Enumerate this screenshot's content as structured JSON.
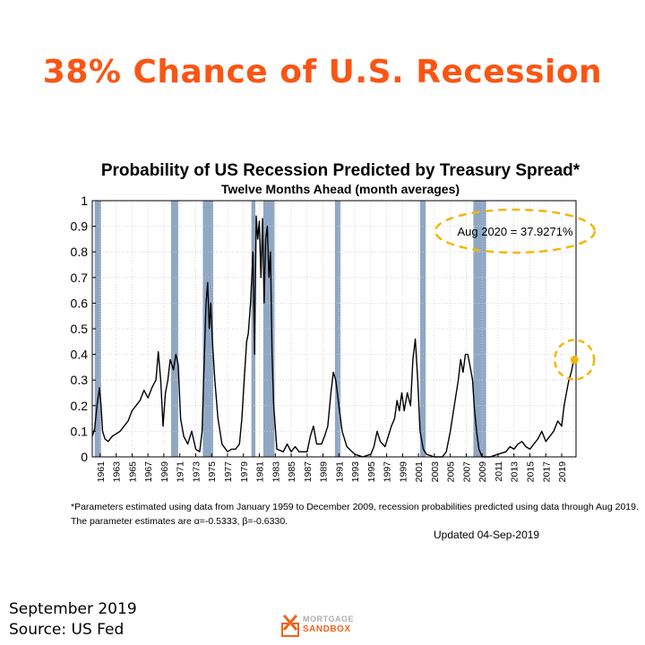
{
  "headline": "38% Chance of U.S. Recession",
  "colors": {
    "headline": "#fa5514",
    "recession_band": "#8fa7c4",
    "line": "#000000",
    "highlight": "#f2b705",
    "logo_orange": "#f0641e"
  },
  "footnote": {
    "line1": "*Parameters estimated using data from January 1959 to December 2009, recession probabilities predicted using data through Aug 2019.",
    "line2": "The parameter estimates are α=-0.5333, β=-0.6330."
  },
  "updated": "Updated 04-Sep-2019",
  "source": {
    "line1": "September 2019",
    "line2": "Source: US Fed"
  },
  "logo": {
    "line1": "MORTGAGE",
    "line2": "SANDBOX"
  },
  "chart_data": {
    "type": "line",
    "title": "Probability of US Recession Predicted by Treasury Spread*",
    "subtitle": "Twelve Months Ahead (month averages)",
    "annotation": "Aug 2020 = 37.9271%",
    "ylim": [
      0,
      1
    ],
    "xlim": [
      1960.0,
      2020.8
    ],
    "y_ticks": [
      "0",
      "0.1",
      "0.2",
      "0.3",
      "0.4",
      "0.5",
      "0.6",
      "0.7",
      "0.8",
      "0.9",
      "1"
    ],
    "x_ticks": [
      "1961",
      "1963",
      "1965",
      "1967",
      "1969",
      "1971",
      "1973",
      "1975",
      "1977",
      "1979",
      "1981",
      "1983",
      "1985",
      "1987",
      "1989",
      "1991",
      "1993",
      "1995",
      "1997",
      "1999",
      "2001",
      "2003",
      "2005",
      "2007",
      "2009",
      "2011",
      "2013",
      "2015",
      "2017",
      "2019"
    ],
    "grid": true,
    "recessions": [
      [
        1960.3,
        1961.1
      ],
      [
        1969.9,
        1970.8
      ],
      [
        1973.9,
        1975.2
      ],
      [
        1980.0,
        1980.5
      ],
      [
        1981.5,
        1982.9
      ],
      [
        1990.5,
        1991.2
      ],
      [
        2001.2,
        2001.9
      ],
      [
        2007.9,
        2009.5
      ]
    ],
    "series": [
      {
        "values": [
          [
            1960.0,
            0.08
          ],
          [
            1960.3,
            0.11
          ],
          [
            1960.6,
            0.2
          ],
          [
            1960.9,
            0.27
          ],
          [
            1961.1,
            0.2
          ],
          [
            1961.3,
            0.1
          ],
          [
            1961.6,
            0.07
          ],
          [
            1962.0,
            0.06
          ],
          [
            1962.5,
            0.08
          ],
          [
            1963.0,
            0.09
          ],
          [
            1963.5,
            0.1
          ],
          [
            1964.0,
            0.12
          ],
          [
            1964.5,
            0.14
          ],
          [
            1965.0,
            0.18
          ],
          [
            1965.5,
            0.2
          ],
          [
            1966.0,
            0.22
          ],
          [
            1966.5,
            0.26
          ],
          [
            1967.0,
            0.23
          ],
          [
            1967.5,
            0.27
          ],
          [
            1968.0,
            0.3
          ],
          [
            1968.3,
            0.41
          ],
          [
            1968.6,
            0.3
          ],
          [
            1968.9,
            0.12
          ],
          [
            1969.2,
            0.25
          ],
          [
            1969.5,
            0.3
          ],
          [
            1969.8,
            0.38
          ],
          [
            1970.2,
            0.34
          ],
          [
            1970.5,
            0.4
          ],
          [
            1970.8,
            0.36
          ],
          [
            1971.1,
            0.15
          ],
          [
            1971.5,
            0.08
          ],
          [
            1972.0,
            0.05
          ],
          [
            1972.5,
            0.1
          ],
          [
            1973.0,
            0.03
          ],
          [
            1973.5,
            0.02
          ],
          [
            1973.8,
            0.1
          ],
          [
            1974.0,
            0.3
          ],
          [
            1974.3,
            0.6
          ],
          [
            1974.5,
            0.68
          ],
          [
            1974.7,
            0.5
          ],
          [
            1974.9,
            0.6
          ],
          [
            1975.1,
            0.45
          ],
          [
            1975.4,
            0.3
          ],
          [
            1975.8,
            0.15
          ],
          [
            1976.3,
            0.05
          ],
          [
            1977.0,
            0.02
          ],
          [
            1977.5,
            0.03
          ],
          [
            1978.0,
            0.03
          ],
          [
            1978.5,
            0.05
          ],
          [
            1978.8,
            0.15
          ],
          [
            1979.1,
            0.3
          ],
          [
            1979.4,
            0.45
          ],
          [
            1979.6,
            0.48
          ],
          [
            1979.9,
            0.6
          ],
          [
            1980.2,
            0.8
          ],
          [
            1980.4,
            0.4
          ],
          [
            1980.6,
            0.94
          ],
          [
            1980.8,
            0.85
          ],
          [
            1981.0,
            0.92
          ],
          [
            1981.2,
            0.7
          ],
          [
            1981.4,
            0.93
          ],
          [
            1981.6,
            0.6
          ],
          [
            1981.8,
            0.85
          ],
          [
            1982.0,
            0.9
          ],
          [
            1982.2,
            0.7
          ],
          [
            1982.4,
            0.8
          ],
          [
            1982.6,
            0.4
          ],
          [
            1982.8,
            0.2
          ],
          [
            1983.2,
            0.03
          ],
          [
            1984.0,
            0.02
          ],
          [
            1984.5,
            0.05
          ],
          [
            1985.0,
            0.02
          ],
          [
            1985.5,
            0.04
          ],
          [
            1986.0,
            0.02
          ],
          [
            1987.0,
            0.02
          ],
          [
            1987.4,
            0.08
          ],
          [
            1987.8,
            0.12
          ],
          [
            1988.2,
            0.05
          ],
          [
            1988.8,
            0.05
          ],
          [
            1989.2,
            0.08
          ],
          [
            1989.6,
            0.12
          ],
          [
            1990.0,
            0.25
          ],
          [
            1990.3,
            0.33
          ],
          [
            1990.6,
            0.3
          ],
          [
            1991.0,
            0.2
          ],
          [
            1991.4,
            0.1
          ],
          [
            1992.0,
            0.04
          ],
          [
            1993.0,
            0.01
          ],
          [
            1994.0,
            0.0
          ],
          [
            1995.0,
            0.01
          ],
          [
            1995.4,
            0.04
          ],
          [
            1995.8,
            0.1
          ],
          [
            1996.2,
            0.06
          ],
          [
            1996.8,
            0.04
          ],
          [
            1997.2,
            0.08
          ],
          [
            1997.6,
            0.12
          ],
          [
            1998.0,
            0.15
          ],
          [
            1998.3,
            0.22
          ],
          [
            1998.6,
            0.18
          ],
          [
            1998.9,
            0.25
          ],
          [
            1999.2,
            0.18
          ],
          [
            1999.6,
            0.25
          ],
          [
            2000.0,
            0.2
          ],
          [
            2000.3,
            0.38
          ],
          [
            2000.6,
            0.46
          ],
          [
            2000.9,
            0.3
          ],
          [
            2001.2,
            0.1
          ],
          [
            2001.6,
            0.03
          ],
          [
            2002.0,
            0.01
          ],
          [
            2003.0,
            0.0
          ],
          [
            2004.0,
            0.0
          ],
          [
            2004.5,
            0.02
          ],
          [
            2005.0,
            0.1
          ],
          [
            2005.5,
            0.2
          ],
          [
            2006.0,
            0.3
          ],
          [
            2006.3,
            0.38
          ],
          [
            2006.6,
            0.33
          ],
          [
            2006.9,
            0.4
          ],
          [
            2007.2,
            0.4
          ],
          [
            2007.5,
            0.35
          ],
          [
            2007.8,
            0.3
          ],
          [
            2008.0,
            0.2
          ],
          [
            2008.3,
            0.1
          ],
          [
            2008.6,
            0.03
          ],
          [
            2009.0,
            0.0
          ],
          [
            2010.0,
            0.0
          ],
          [
            2011.0,
            0.01
          ],
          [
            2012.0,
            0.02
          ],
          [
            2012.5,
            0.04
          ],
          [
            2013.0,
            0.03
          ],
          [
            2013.5,
            0.05
          ],
          [
            2014.0,
            0.06
          ],
          [
            2014.5,
            0.04
          ],
          [
            2015.0,
            0.03
          ],
          [
            2015.5,
            0.05
          ],
          [
            2016.0,
            0.07
          ],
          [
            2016.5,
            0.1
          ],
          [
            2017.0,
            0.06
          ],
          [
            2017.5,
            0.08
          ],
          [
            2018.0,
            0.1
          ],
          [
            2018.5,
            0.14
          ],
          [
            2019.0,
            0.12
          ],
          [
            2019.3,
            0.2
          ],
          [
            2019.6,
            0.25
          ],
          [
            2019.9,
            0.3
          ],
          [
            2020.2,
            0.33
          ],
          [
            2020.4,
            0.36
          ],
          [
            2020.6,
            0.38
          ]
        ]
      }
    ],
    "highlight_point": [
      2020.6,
      0.379271
    ]
  }
}
